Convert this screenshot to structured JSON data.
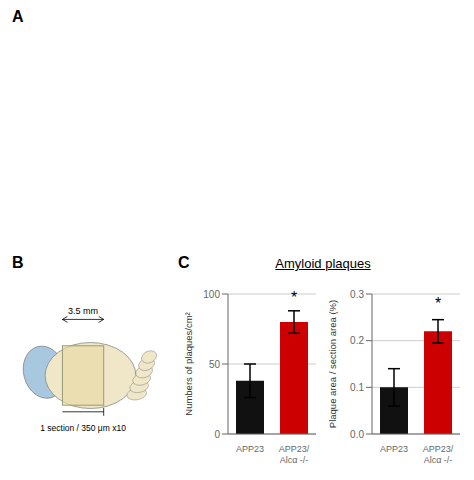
{
  "title": "Amyloid plaques",
  "annotations": [
    "A",
    "B",
    "C",
    "3.5 mm",
    "1 section / 350 μm x10"
  ],
  "chart_data": [
    {
      "type": "bar",
      "categories": [
        "APP23",
        "APP23/\nAlcα -/-"
      ],
      "values": [
        38,
        80
      ],
      "errors": [
        12,
        8
      ],
      "colors": [
        "#111111",
        "#cc0000"
      ],
      "y_label": "Numbers of plaques/cm²",
      "ylim": [
        0,
        100
      ],
      "yticks": [
        0,
        50,
        100
      ],
      "grid": true,
      "annotations": [
        {
          "text": "*",
          "x": "APP23/\nAlcα -/-",
          "y": 90
        }
      ]
    },
    {
      "type": "bar",
      "categories": [
        "APP23",
        "APP23/\nAlcα -/-"
      ],
      "values": [
        0.1,
        0.22
      ],
      "errors": [
        0.04,
        0.025
      ],
      "colors": [
        "#111111",
        "#cc0000"
      ],
      "y_label": "Plaque area / section area (%)",
      "ylim": [
        0,
        0.3
      ],
      "yticks": [
        {
          "value": 0,
          "label": "0.0"
        },
        0.1,
        0.2,
        0.3
      ],
      "grid": true,
      "annotations": [
        {
          "text": "*",
          "x": "APP23/\nAlcα -/-",
          "y": 0.258
        }
      ]
    }
  ]
}
